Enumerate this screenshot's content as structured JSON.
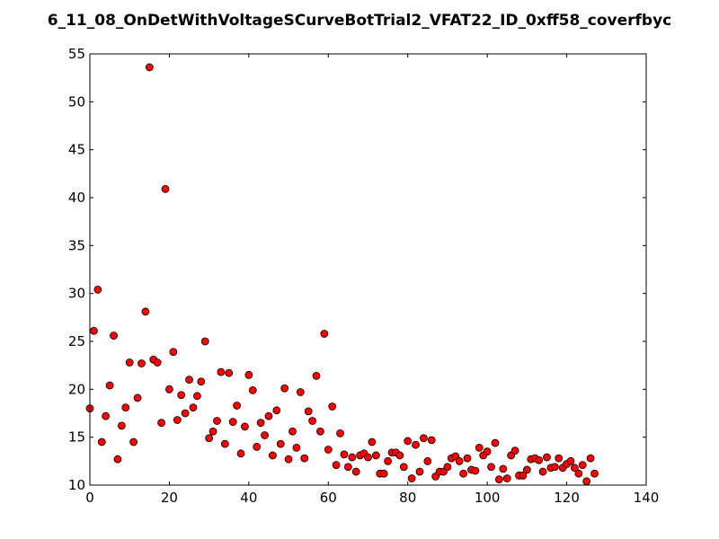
{
  "chart_data": {
    "type": "scatter",
    "title": "6_11_08_OnDetWithVoltageSCurveBotTrial2_VFAT22_ID_0xff58_coverfbyc",
    "xlabel": "",
    "ylabel": "",
    "xlim": [
      0,
      140
    ],
    "ylim": [
      10,
      55
    ],
    "x_ticks": [
      "0",
      "20",
      "40",
      "60",
      "80",
      "100",
      "120",
      "140"
    ],
    "y_ticks": [
      "10",
      "15",
      "20",
      "25",
      "30",
      "35",
      "40",
      "45",
      "50",
      "55"
    ],
    "grid": false,
    "marker_color": "#ff0000",
    "marker_edge_color": "#000000",
    "x": [
      0,
      1,
      2,
      3,
      4,
      5,
      6,
      7,
      8,
      9,
      10,
      11,
      12,
      13,
      14,
      15,
      16,
      17,
      18,
      19,
      20,
      21,
      22,
      23,
      24,
      25,
      26,
      27,
      28,
      29,
      30,
      31,
      32,
      33,
      34,
      35,
      36,
      37,
      38,
      39,
      40,
      41,
      42,
      43,
      44,
      45,
      46,
      47,
      48,
      49,
      50,
      51,
      52,
      53,
      54,
      55,
      56,
      57,
      58,
      59,
      60,
      61,
      62,
      63,
      64,
      65,
      66,
      67,
      68,
      69,
      70,
      71,
      72,
      73,
      74,
      75,
      76,
      77,
      78,
      79,
      80,
      81,
      82,
      83,
      84,
      85,
      86,
      87,
      88,
      89,
      90,
      91,
      92,
      93,
      94,
      95,
      96,
      97,
      98,
      99,
      100,
      101,
      102,
      103,
      104,
      105,
      106,
      107,
      108,
      109,
      110,
      111,
      112,
      113,
      114,
      115,
      116,
      117,
      118,
      119,
      120,
      121,
      122,
      123,
      124,
      125,
      126,
      127
    ],
    "y": [
      18.0,
      26.1,
      30.4,
      14.5,
      17.2,
      20.4,
      25.6,
      12.7,
      16.2,
      18.1,
      22.8,
      14.5,
      19.1,
      22.7,
      28.1,
      53.6,
      23.1,
      22.8,
      16.5,
      40.9,
      20.0,
      23.9,
      16.8,
      19.4,
      17.5,
      21.0,
      18.1,
      19.3,
      20.8,
      25.0,
      14.9,
      15.6,
      16.7,
      21.8,
      14.3,
      21.7,
      16.6,
      18.3,
      13.3,
      16.1,
      21.5,
      19.9,
      14.0,
      16.5,
      15.2,
      17.2,
      13.1,
      17.8,
      14.3,
      20.1,
      12.7,
      15.6,
      13.9,
      19.7,
      12.8,
      17.7,
      16.7,
      21.4,
      15.6,
      25.8,
      13.7,
      18.2,
      12.1,
      15.4,
      13.2,
      11.9,
      12.9,
      11.4,
      13.1,
      13.3,
      12.9,
      14.5,
      13.1,
      11.2,
      11.2,
      12.5,
      13.4,
      13.4,
      13.1,
      11.9,
      14.6,
      10.7,
      14.2,
      11.4,
      14.9,
      12.5,
      14.7,
      10.9,
      11.4,
      11.4,
      11.9,
      12.8,
      13.0,
      12.5,
      11.2,
      12.8,
      11.6,
      11.5,
      13.9,
      13.1,
      13.5,
      11.9,
      14.4,
      10.6,
      11.7,
      10.7,
      13.1,
      13.6,
      11.0,
      11.0,
      11.6,
      12.7,
      12.8,
      12.6,
      11.4,
      12.9,
      11.8,
      11.9,
      12.8,
      11.8,
      12.2,
      12.5,
      11.8,
      11.2,
      12.1,
      10.4,
      12.8,
      11.2
    ]
  }
}
